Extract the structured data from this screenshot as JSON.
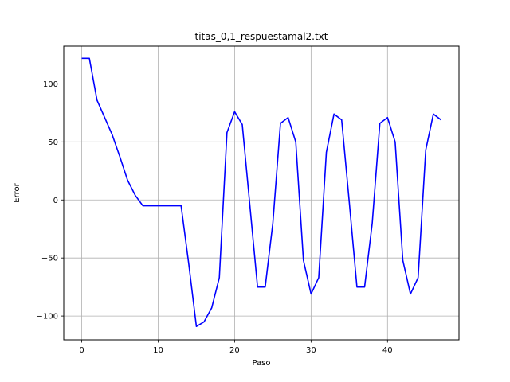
{
  "chart_data": {
    "type": "line",
    "title": "titas_0,1_respuestamal2.txt",
    "xlabel": "Paso",
    "ylabel": "Error",
    "xlim": [
      -2.35,
      49.35
    ],
    "ylim": [
      -120.5,
      132.5
    ],
    "xticks": [
      0,
      10,
      20,
      30,
      40
    ],
    "xtick_labels": [
      "0",
      "10",
      "20",
      "30",
      "40"
    ],
    "yticks": [
      -100,
      -50,
      0,
      50,
      100
    ],
    "ytick_labels": [
      "−100",
      "−50",
      "0",
      "50",
      "100"
    ],
    "grid": true,
    "series": [
      {
        "color": "#0000ff",
        "x": [
          0,
          1,
          2,
          3,
          4,
          5,
          6,
          7,
          8,
          9,
          10,
          11,
          12,
          13,
          14,
          15,
          16,
          17,
          18,
          19,
          20,
          21,
          22,
          23,
          24,
          25,
          26,
          27,
          28,
          29,
          30,
          31,
          32,
          33,
          34,
          35,
          36,
          37,
          38,
          39,
          40,
          41,
          42,
          43,
          44,
          45,
          46,
          47
        ],
        "y": [
          122,
          122,
          86,
          71,
          56,
          37,
          17,
          4,
          -5,
          -5,
          -5,
          -5,
          -5,
          -5,
          -55,
          -109,
          -105,
          -93,
          -67,
          58,
          76,
          65,
          -5,
          -75,
          -75,
          -20,
          66,
          71,
          50,
          -52,
          -81,
          -67,
          41,
          74,
          69,
          -2,
          -75,
          -75,
          -20,
          66,
          71,
          50,
          -52,
          -81,
          -67,
          43,
          74,
          69
        ]
      }
    ]
  }
}
